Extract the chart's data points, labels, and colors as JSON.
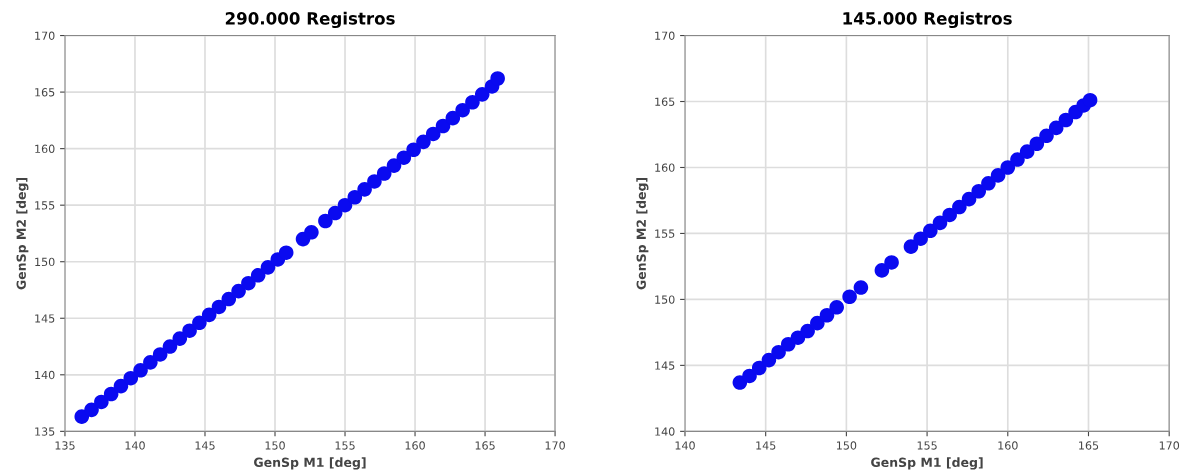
{
  "chart_data": [
    {
      "type": "scatter",
      "title": "290.000 Registros",
      "xlabel": "GenSp M1 [deg]",
      "ylabel": "GenSp M2 [deg]",
      "xlim": [
        135,
        170
      ],
      "ylim": [
        135,
        170
      ],
      "xticks": [
        135,
        140,
        145,
        150,
        155,
        160,
        165,
        170
      ],
      "yticks": [
        135,
        140,
        145,
        150,
        155,
        160,
        165,
        170
      ],
      "grid": true,
      "marker": "circle",
      "series": [
        {
          "color": "#0a0af0",
          "x": [
            136.2,
            136.9,
            137.6,
            138.3,
            139.0,
            139.7,
            140.4,
            141.1,
            141.8,
            142.5,
            143.2,
            143.9,
            144.6,
            145.3,
            146.0,
            146.7,
            147.4,
            148.1,
            148.8,
            149.5,
            150.2,
            150.8,
            152.0,
            152.6,
            153.6,
            154.3,
            155.0,
            155.7,
            156.4,
            157.1,
            157.8,
            158.5,
            159.2,
            159.9,
            160.6,
            161.3,
            162.0,
            162.7,
            163.4,
            164.1,
            164.8,
            165.5,
            165.9
          ],
          "values": [
            136.3,
            136.9,
            137.6,
            138.3,
            139.0,
            139.7,
            140.4,
            141.1,
            141.8,
            142.5,
            143.2,
            143.9,
            144.6,
            145.3,
            146.0,
            146.7,
            147.4,
            148.1,
            148.8,
            149.5,
            150.2,
            150.8,
            152.0,
            152.6,
            153.6,
            154.3,
            155.0,
            155.7,
            156.4,
            157.1,
            157.8,
            158.5,
            159.2,
            159.9,
            160.6,
            161.3,
            162.0,
            162.7,
            163.4,
            164.1,
            164.8,
            165.5,
            166.2
          ]
        }
      ]
    },
    {
      "type": "scatter",
      "title": "145.000 Registros",
      "xlabel": "GenSp M1 [deg]",
      "ylabel": "GenSp M2 [deg]",
      "xlim": [
        140,
        170
      ],
      "ylim": [
        140,
        170
      ],
      "xticks": [
        140,
        145,
        150,
        155,
        160,
        165,
        170
      ],
      "yticks": [
        140,
        145,
        150,
        155,
        160,
        165,
        170
      ],
      "grid": true,
      "marker": "circle",
      "series": [
        {
          "color": "#0a0af0",
          "x": [
            143.4,
            144.0,
            144.6,
            145.2,
            145.8,
            146.4,
            147.0,
            147.6,
            148.2,
            148.8,
            149.4,
            150.2,
            150.9,
            152.2,
            152.8,
            154.0,
            154.6,
            155.2,
            155.8,
            156.4,
            157.0,
            157.6,
            158.2,
            158.8,
            159.4,
            160.0,
            160.6,
            161.2,
            161.8,
            162.4,
            163.0,
            163.6,
            164.2,
            164.7,
            165.1
          ],
          "values": [
            143.7,
            144.2,
            144.8,
            145.4,
            146.0,
            146.6,
            147.1,
            147.6,
            148.2,
            148.8,
            149.4,
            150.2,
            150.9,
            152.2,
            152.8,
            154.0,
            154.6,
            155.2,
            155.8,
            156.4,
            157.0,
            157.6,
            158.2,
            158.8,
            159.4,
            160.0,
            160.6,
            161.2,
            161.8,
            162.4,
            163.0,
            163.6,
            164.2,
            164.7,
            165.1
          ]
        }
      ]
    }
  ]
}
